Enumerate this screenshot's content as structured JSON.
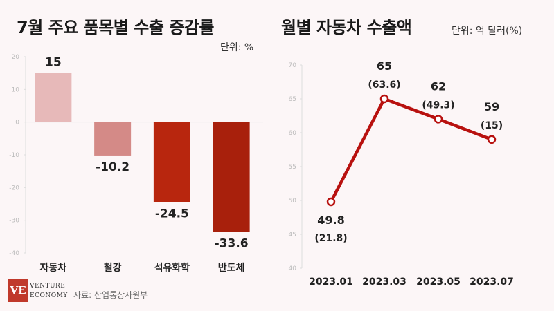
{
  "left": {
    "title": "7월 주요 품목별 수출 증감률",
    "unit": "단위: %"
  },
  "right": {
    "title": "월별 자동차 수출액",
    "unit": "단위: 억 달러(%)"
  },
  "source": "자료: 산업통상자원부",
  "logo": {
    "line1": "VENTURE",
    "line2": "ECONOMY",
    "mark": "VE"
  },
  "colors": {
    "accent": "#b8110f",
    "bar_light": "#e7b9b9",
    "bar_mid": "#d48a87",
    "bar_dark1": "#b8260e",
    "bar_dark2": "#a8200c"
  },
  "chart_data": [
    {
      "type": "bar",
      "title": "7월 주요 품목별 수출 증감률",
      "ylabel": "단위: %",
      "categories": [
        "자동차",
        "철강",
        "석유화학",
        "반도체"
      ],
      "values": [
        15,
        -10.2,
        -24.5,
        -33.6
      ],
      "value_labels": [
        "15",
        "-10.2",
        "-24.5",
        "-33.6"
      ],
      "bar_colors": [
        "#e7b9b9",
        "#d48a87",
        "#b8260e",
        "#a8200c"
      ],
      "yticks": [
        20,
        10,
        0,
        -10,
        -20,
        -30,
        -40
      ],
      "ytick_labels": [
        "20",
        "10",
        "0",
        "-10",
        "-20",
        "-30",
        "-40"
      ],
      "ylim": [
        -40,
        20
      ],
      "grid": false
    },
    {
      "type": "line",
      "title": "월별 자동차 수출액",
      "ylabel": "단위: 억 달러(%)",
      "x": [
        "2023.01",
        "2023.03",
        "2023.05",
        "2023.07"
      ],
      "values": [
        49.8,
        65,
        62,
        59
      ],
      "value_labels": [
        "49.8",
        "65",
        "62",
        "59"
      ],
      "pct_labels": [
        "(21.8)",
        "(63.6)",
        "(49.3)",
        "(15)"
      ],
      "yticks": [
        70,
        65,
        60,
        55,
        50,
        45,
        40
      ],
      "ytick_labels": [
        "70",
        "65",
        "60",
        "55",
        "50",
        "45",
        "40"
      ],
      "ylim": [
        40,
        70
      ],
      "grid": false,
      "color": "#b8110f"
    }
  ]
}
